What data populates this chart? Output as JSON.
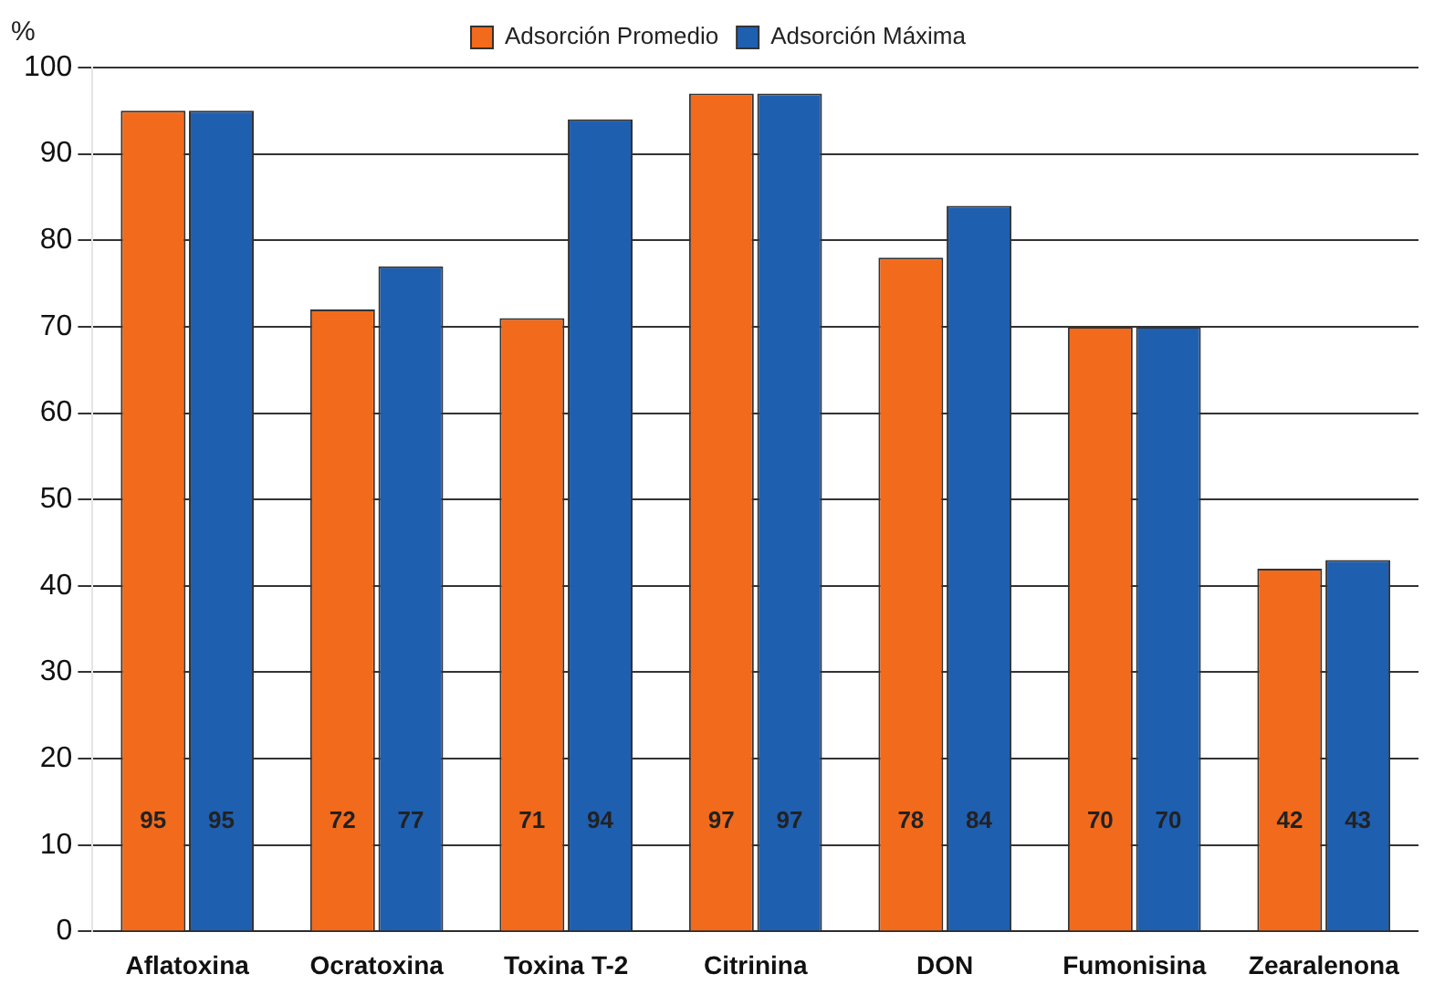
{
  "chart_data": {
    "type": "bar",
    "ylabel": "%",
    "categories": [
      "Aflatoxina",
      "Ocratoxina",
      "Toxina T-2",
      "Citrinina",
      "DON",
      "Fumonisina",
      "Zearalenona"
    ],
    "series": [
      {
        "name": "Adsorción Promedio",
        "color": "#f26a1b",
        "values": [
          95,
          72,
          71,
          97,
          78,
          70,
          42
        ]
      },
      {
        "name": "Adsorción Máxima",
        "color": "#1f5fb0",
        "values": [
          95,
          77,
          94,
          97,
          84,
          70,
          43
        ]
      }
    ],
    "ylim": [
      0,
      100
    ],
    "yticks": [
      0,
      10,
      20,
      30,
      40,
      50,
      60,
      70,
      80,
      90,
      100
    ],
    "grid": "y",
    "legend": "top",
    "data_labels": true
  }
}
